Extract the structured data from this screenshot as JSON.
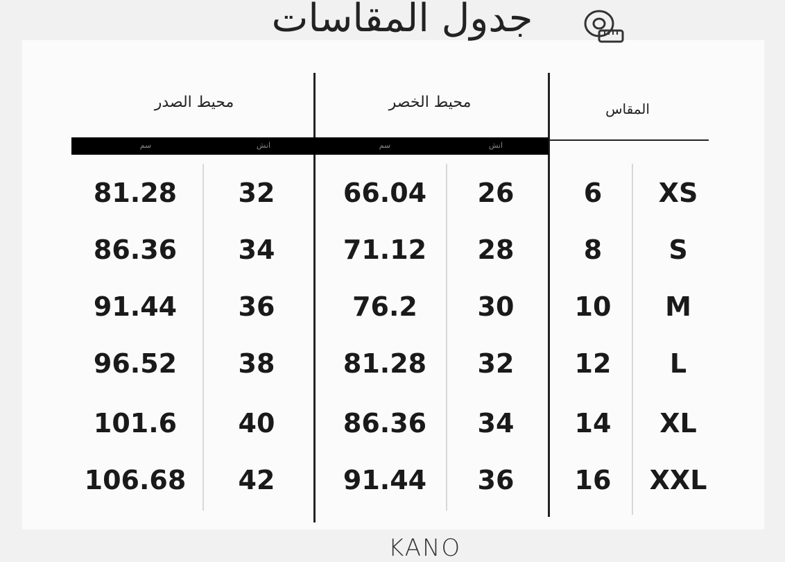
{
  "title": "جدول المقاسات",
  "headers": {
    "size": "المقاس",
    "waist": "محيط الخصر",
    "chest": "محيط الصدر"
  },
  "units": {
    "inch": "انش",
    "cm": "سم"
  },
  "rows": [
    {
      "size": "XS",
      "num": "6",
      "waist_in": "26",
      "waist_cm": "66.04",
      "chest_in": "32",
      "chest_cm": "81.28"
    },
    {
      "size": "S",
      "num": "8",
      "waist_in": "28",
      "waist_cm": "71.12",
      "chest_in": "34",
      "chest_cm": "86.36"
    },
    {
      "size": "M",
      "num": "10",
      "waist_in": "30",
      "waist_cm": "76.2",
      "chest_in": "36",
      "chest_cm": "91.44"
    },
    {
      "size": "L",
      "num": "12",
      "waist_in": "32",
      "waist_cm": "81.28",
      "chest_in": "38",
      "chest_cm": "96.52"
    },
    {
      "size": "XL",
      "num": "14",
      "waist_in": "34",
      "waist_cm": "86.36",
      "chest_in": "40",
      "chest_cm": "101.6"
    },
    {
      "size": "XXL",
      "num": "16",
      "waist_in": "36",
      "waist_cm": "91.44",
      "chest_in": "42",
      "chest_cm": "106.68"
    }
  ],
  "logo": "KANO",
  "icons": {
    "title_icon": "measuring-tape-icon"
  }
}
